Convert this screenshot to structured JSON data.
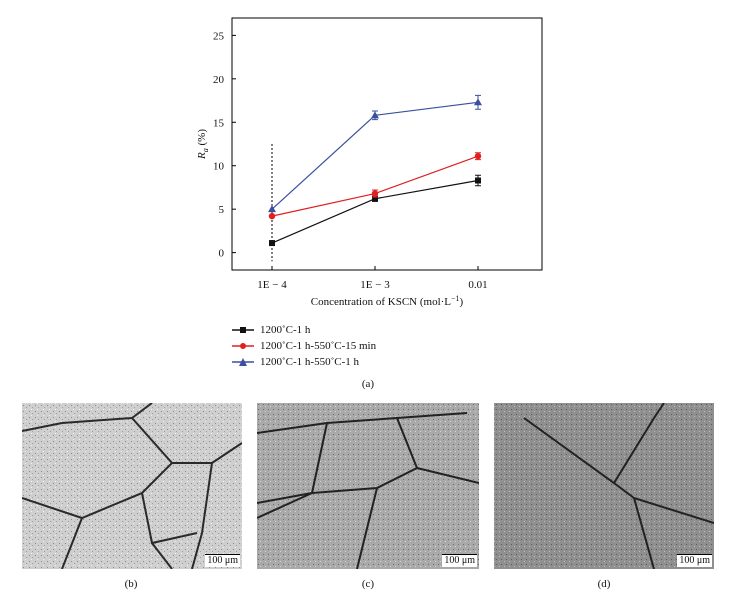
{
  "chart_data": {
    "type": "line",
    "categories": [
      "1E − 4",
      "1E − 3",
      "0.01"
    ],
    "xlabel": "Concentration of KSCN (mol·L",
    "xlabel_sup": "−1",
    "xlabel_end": ")",
    "ylabel": "R",
    "ylabel_sub": "a",
    "ylabel_unit": " (%)",
    "ylim": [
      -2,
      27
    ],
    "yticks": [
      "0",
      "5",
      "10",
      "15",
      "20",
      "25"
    ],
    "ytick_values": [
      0,
      5,
      10,
      15,
      20,
      25
    ],
    "series": [
      {
        "name": "1200˚C-1 h",
        "color": "#111111",
        "marker": "square",
        "values": [
          1.1,
          6.2,
          8.3
        ],
        "errors": [
          0,
          0.3,
          0.6
        ]
      },
      {
        "name": "1200˚C-1 h-550˚C-15 min",
        "color": "#e02020",
        "marker": "circle",
        "values": [
          4.2,
          6.8,
          11.1
        ],
        "errors": [
          0,
          0.4,
          0.4
        ]
      },
      {
        "name": "1200˚C-1 h-550˚C-1 h",
        "color": "#3a4fa0",
        "marker": "triangle",
        "values": [
          5.0,
          15.8,
          17.3
        ],
        "errors": [
          0,
          0.5,
          0.8
        ]
      }
    ],
    "vertical_dashed_line": {
      "x": "1E − 4",
      "y_from": -1,
      "y_to": 12.5
    }
  },
  "captions": {
    "a": "(a)",
    "b": "(b)",
    "c": "(c)",
    "d": "(d)"
  },
  "scale_bar": "100 μm"
}
